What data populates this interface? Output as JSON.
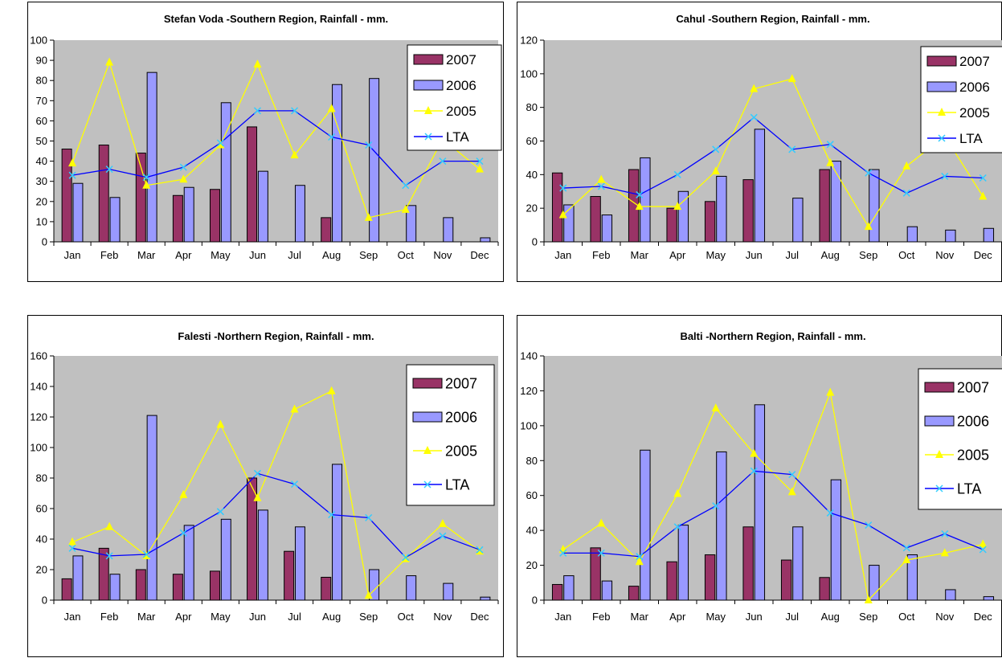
{
  "chart_data": [
    {
      "type": "bar",
      "title": "Stefan Voda -Southern Region, Rainfall - mm.",
      "categories": [
        "Jan",
        "Feb",
        "Mar",
        "Apr",
        "May",
        "Jun",
        "Jul",
        "Aug",
        "Sep",
        "Oct",
        "Nov",
        "Dec"
      ],
      "ylim": [
        0,
        100
      ],
      "yticks": [
        0,
        10,
        20,
        30,
        40,
        50,
        60,
        70,
        80,
        90,
        100
      ],
      "legend_position": "top-right",
      "grid": false,
      "series": [
        {
          "name": "2007",
          "kind": "bar",
          "color": "#993366",
          "values": [
            46,
            48,
            44,
            23,
            26,
            57,
            null,
            12,
            null,
            null,
            null,
            null
          ]
        },
        {
          "name": "2006",
          "kind": "bar",
          "color": "#9999ff",
          "values": [
            29,
            22,
            84,
            27,
            69,
            35,
            28,
            78,
            81,
            18,
            12,
            2
          ]
        },
        {
          "name": "2005",
          "kind": "line",
          "color": "#ffff00",
          "marker": "triangle",
          "values": [
            39,
            89,
            28,
            31,
            48,
            88,
            43,
            66,
            12,
            16,
            51,
            36
          ]
        },
        {
          "name": "LTA",
          "kind": "line",
          "color": "#0000ff",
          "marker": "x",
          "marker_color": "#33ccff",
          "values": [
            33,
            36,
            32,
            37,
            49,
            65,
            65,
            52,
            48,
            28,
            40,
            40
          ]
        }
      ]
    },
    {
      "type": "bar",
      "title": "Cahul -Southern Region, Rainfall - mm.",
      "categories": [
        "Jan",
        "Feb",
        "Mar",
        "Apr",
        "May",
        "Jun",
        "Jul",
        "Aug",
        "Sep",
        "Oct",
        "Nov",
        "Dec"
      ],
      "ylim": [
        0,
        120
      ],
      "yticks": [
        0,
        20,
        40,
        60,
        80,
        100,
        120
      ],
      "legend_position": "top-right",
      "grid": false,
      "series": [
        {
          "name": "2007",
          "kind": "bar",
          "color": "#993366",
          "values": [
            41,
            27,
            43,
            20,
            24,
            37,
            null,
            43,
            null,
            null,
            null,
            null
          ]
        },
        {
          "name": "2006",
          "kind": "bar",
          "color": "#9999ff",
          "values": [
            22,
            16,
            50,
            30,
            39,
            67,
            26,
            48,
            43,
            9,
            7,
            8
          ]
        },
        {
          "name": "2005",
          "kind": "line",
          "color": "#ffff00",
          "marker": "triangle",
          "values": [
            16,
            37,
            21,
            21,
            42,
            91,
            97,
            47,
            9,
            45,
            63,
            27
          ]
        },
        {
          "name": "LTA",
          "kind": "line",
          "color": "#0000ff",
          "marker": "x",
          "marker_color": "#33ccff",
          "values": [
            32,
            33,
            28,
            40,
            55,
            74,
            55,
            58,
            41,
            29,
            39,
            38
          ]
        }
      ]
    },
    {
      "type": "bar",
      "title": "Falesti -Northern Region, Rainfall - mm.",
      "categories": [
        "Jan",
        "Feb",
        "Mar",
        "Apr",
        "May",
        "Jun",
        "Jul",
        "Aug",
        "Sep",
        "Oct",
        "Nov",
        "Dec"
      ],
      "ylim": [
        0,
        160
      ],
      "yticks": [
        0,
        20,
        40,
        60,
        80,
        100,
        120,
        140,
        160
      ],
      "legend_position": "top-right",
      "grid": false,
      "series": [
        {
          "name": "2007",
          "kind": "bar",
          "color": "#993366",
          "values": [
            14,
            34,
            20,
            17,
            19,
            80,
            32,
            15,
            null,
            null,
            null,
            null
          ]
        },
        {
          "name": "2006",
          "kind": "bar",
          "color": "#9999ff",
          "values": [
            29,
            17,
            121,
            49,
            53,
            59,
            48,
            89,
            20,
            16,
            11,
            2
          ]
        },
        {
          "name": "2005",
          "kind": "line",
          "color": "#ffff00",
          "marker": "triangle",
          "values": [
            38,
            48,
            29,
            69,
            115,
            67,
            125,
            137,
            3,
            27,
            50,
            32
          ]
        },
        {
          "name": "LTA",
          "kind": "line",
          "color": "#0000ff",
          "marker": "x",
          "marker_color": "#33ccff",
          "values": [
            34,
            29,
            30,
            44,
            58,
            83,
            76,
            56,
            54,
            28,
            42,
            33
          ]
        }
      ]
    },
    {
      "type": "bar",
      "title": "Balti -Northern Region, Rainfall - mm.",
      "categories": [
        "Jan",
        "Feb",
        "Mar",
        "Apr",
        "May",
        "Jun",
        "Jul",
        "Aug",
        "Sep",
        "Oct",
        "Nov",
        "Dec"
      ],
      "ylim": [
        0,
        140
      ],
      "yticks": [
        0,
        20,
        40,
        60,
        80,
        100,
        120,
        140
      ],
      "legend_position": "top-right",
      "grid": false,
      "series": [
        {
          "name": "2007",
          "kind": "bar",
          "color": "#993366",
          "values": [
            9,
            30,
            8,
            22,
            26,
            42,
            23,
            13,
            null,
            null,
            null,
            null
          ]
        },
        {
          "name": "2006",
          "kind": "bar",
          "color": "#9999ff",
          "values": [
            14,
            11,
            86,
            43,
            85,
            112,
            42,
            69,
            20,
            26,
            6,
            2
          ]
        },
        {
          "name": "2005",
          "kind": "line",
          "color": "#ffff00",
          "marker": "triangle",
          "values": [
            29,
            44,
            22,
            61,
            110,
            84,
            62,
            119,
            0,
            23,
            27,
            32
          ]
        },
        {
          "name": "LTA",
          "kind": "line",
          "color": "#0000ff",
          "marker": "x",
          "marker_color": "#33ccff",
          "values": [
            27,
            27,
            25,
            42,
            54,
            74,
            72,
            50,
            43,
            30,
            38,
            29
          ]
        }
      ]
    }
  ]
}
